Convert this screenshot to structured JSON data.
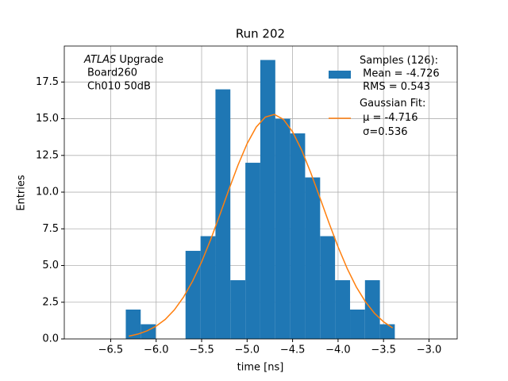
{
  "chart_data": {
    "type": "histogram",
    "title": "Run 202",
    "x_label": "time [ns]",
    "y_label": "Entries",
    "annotation": [
      "ATLAS Upgrade",
      "Board260",
      "Ch010 50dB"
    ],
    "bins": [
      -6.334,
      -6.17,
      -6.005,
      -5.841,
      -5.677,
      -5.512,
      -5.348,
      -5.184,
      -5.019,
      -4.855,
      -4.69,
      -4.526,
      -4.362,
      -4.197,
      -4.033,
      -3.868,
      -3.704,
      -3.54,
      -3.376
    ],
    "series": [
      {
        "name": "Samples (126):\n Mean = -4.726\n RMS = 0.543",
        "color": "#1f77b4",
        "values": [
          2,
          1,
          0,
          0,
          6,
          7,
          17,
          4,
          12,
          19,
          15,
          14,
          11,
          7,
          4,
          2,
          4,
          1
        ]
      },
      {
        "name": "Gaussian Fit:\n μ = -4.716\n σ=0.536",
        "color": "#ff7f0e",
        "x": [
          -6.3,
          -6.2,
          -6.1,
          -6.0,
          -5.9,
          -5.8,
          -5.7,
          -5.6,
          -5.5,
          -5.4,
          -5.3,
          -5.2,
          -5.1,
          -5.0,
          -4.9,
          -4.8,
          -4.7,
          -4.6,
          -4.5,
          -4.4,
          -4.3,
          -4.2,
          -4.1,
          -4.0,
          -3.9,
          -3.8,
          -3.7,
          -3.6,
          -3.5,
          -3.4
        ],
        "values": [
          0.19,
          0.33,
          0.55,
          0.87,
          1.33,
          1.98,
          2.84,
          3.93,
          5.25,
          6.78,
          8.45,
          10.18,
          11.84,
          13.3,
          14.43,
          15.11,
          15.29,
          14.95,
          14.11,
          12.86,
          11.32,
          9.63,
          7.91,
          6.27,
          4.8,
          3.55,
          2.54,
          1.75,
          1.17,
          0.75
        ]
      }
    ],
    "xlim": [
      -7.01,
      -2.69
    ],
    "ylim": [
      0,
      19.95
    ],
    "xticks": [
      {
        "value": -6.5,
        "label": "−6.5"
      },
      {
        "value": -6.0,
        "label": "−6.0"
      },
      {
        "value": -5.5,
        "label": "−5.5"
      },
      {
        "value": -5.0,
        "label": "−5.0"
      },
      {
        "value": -4.5,
        "label": "−4.5"
      },
      {
        "value": -4.0,
        "label": "−4.0"
      },
      {
        "value": -3.5,
        "label": "−3.5"
      },
      {
        "value": -3.0,
        "label": "−3.0"
      }
    ],
    "yticks": [
      {
        "value": 0,
        "label": "0.0"
      },
      {
        "value": 2.5,
        "label": "2.5"
      },
      {
        "value": 5,
        "label": "5.0"
      },
      {
        "value": 7.5,
        "label": "7.5"
      },
      {
        "value": 10,
        "label": "10.0"
      },
      {
        "value": 12.5,
        "label": "12.5"
      },
      {
        "value": 15,
        "label": "15.0"
      },
      {
        "value": 17.5,
        "label": "17.5"
      }
    ],
    "grid": true,
    "legend": "upper right"
  }
}
